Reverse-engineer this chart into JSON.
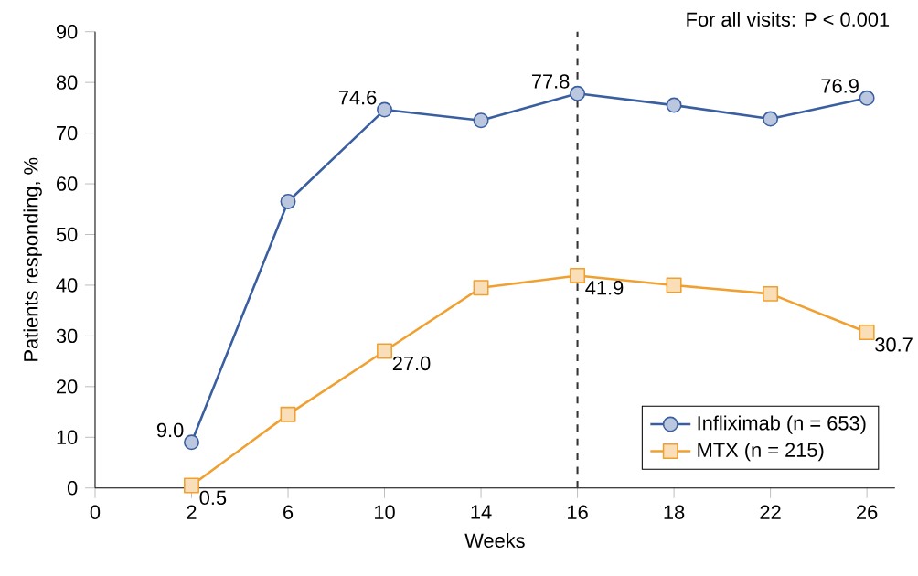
{
  "chart_data": {
    "type": "line",
    "xlabel": "Weeks",
    "ylabel": "Patients responding, %",
    "categories": [
      "0",
      "2",
      "6",
      "10",
      "14",
      "16",
      "18",
      "22",
      "26"
    ],
    "ylim": [
      0,
      90
    ],
    "yticks": [
      0,
      10,
      20,
      30,
      40,
      50,
      60,
      70,
      80,
      90
    ],
    "series": [
      {
        "name": "Infliximab (n = 653)",
        "color": "#3a5fa0",
        "marker": "circle",
        "values": [
          null,
          9.0,
          56.5,
          74.6,
          72.5,
          77.8,
          75.5,
          72.8,
          76.9
        ],
        "value_labels": [
          null,
          "9.0",
          null,
          "74.6",
          null,
          "77.8",
          null,
          null,
          "76.9"
        ]
      },
      {
        "name": "MTX (n = 215)",
        "color": "#f0a030",
        "marker": "square",
        "values": [
          null,
          0.5,
          14.5,
          27.0,
          39.5,
          41.9,
          40.0,
          38.3,
          30.7
        ],
        "value_labels": [
          null,
          "0.5",
          null,
          "27.0",
          null,
          "41.9",
          null,
          null,
          "30.7"
        ]
      }
    ],
    "ref_lines": [
      {
        "axis": "x",
        "value": "16",
        "line_style": "dashed",
        "color": "#333333"
      }
    ],
    "legend": "bottom right",
    "grid": false,
    "annotations": [
      "For all visits: P < 0.001"
    ]
  }
}
